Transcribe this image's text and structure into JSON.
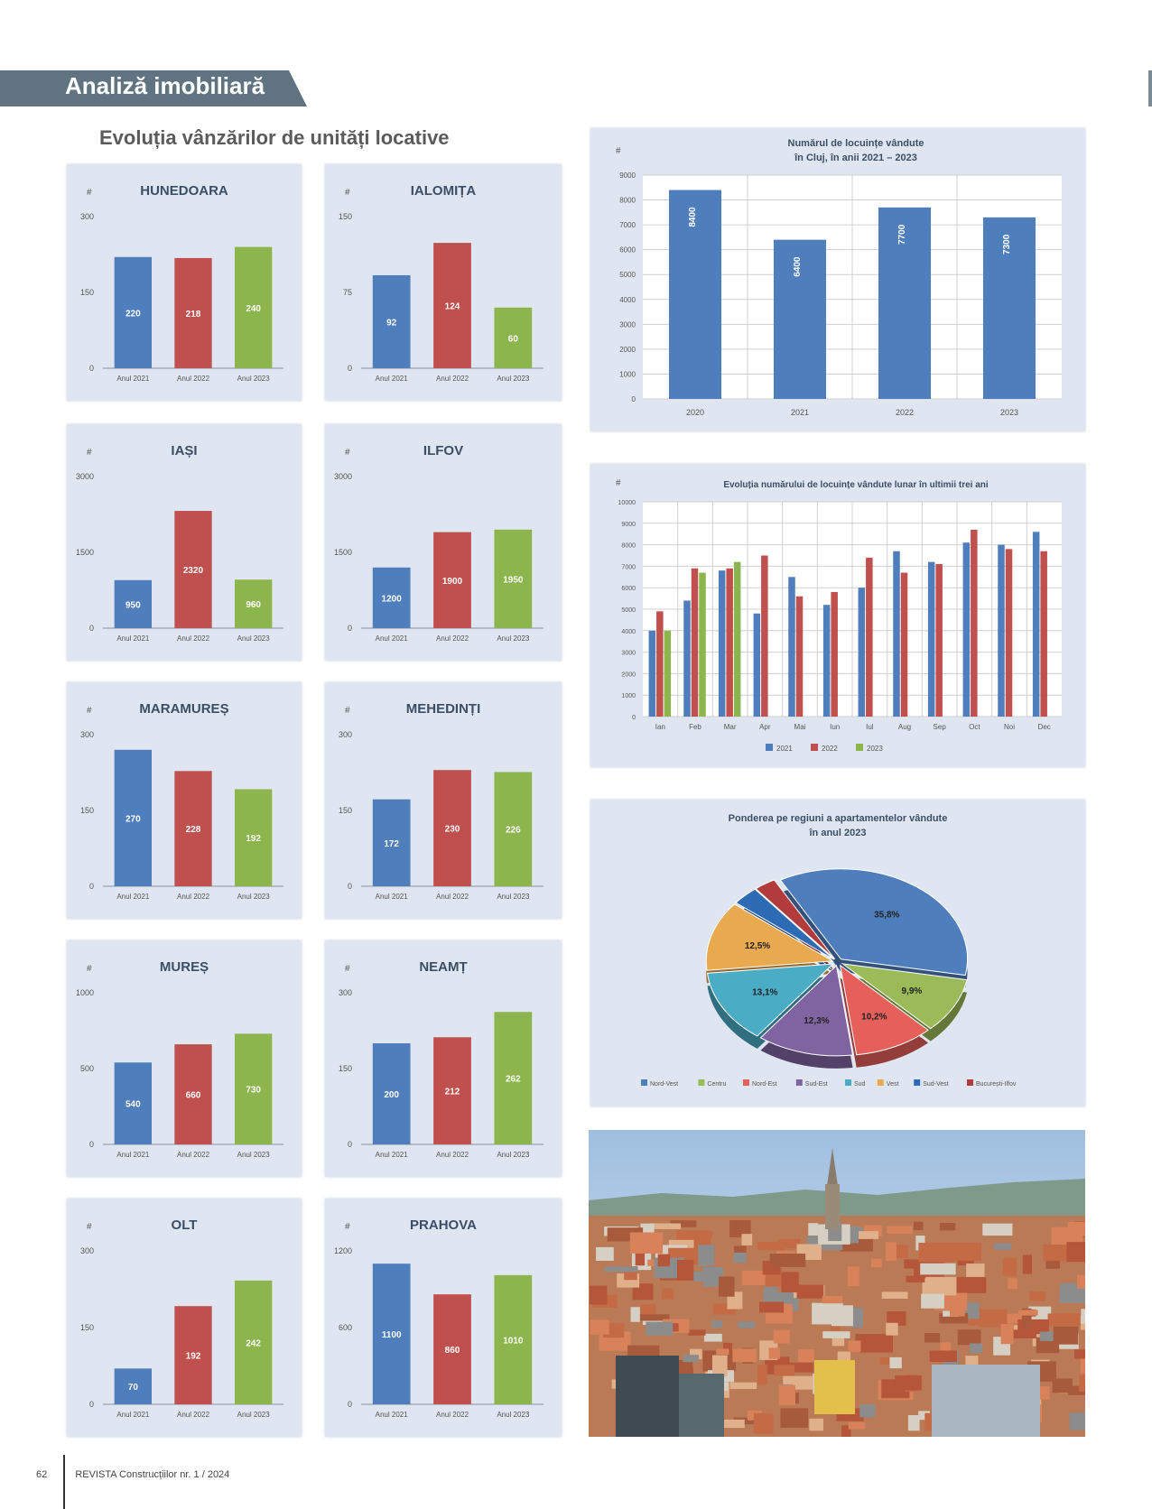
{
  "header": {
    "title": "Analiză imobiliară"
  },
  "section_title": "Evoluția vânzărilor de unități locative",
  "footer": {
    "page": "62",
    "publication": "REVISTA Construcțiilor nr. 1 / 2024"
  },
  "colors": {
    "blue": "#4f7ebd",
    "red": "#c0504d",
    "green": "#8cb54e",
    "panel": "#dfe6f1"
  },
  "chart_data": [
    {
      "id": "hunedoara",
      "type": "bar",
      "title": "HUNEDOARA",
      "ylabel": "#",
      "ylim": [
        0,
        300
      ],
      "yticks": [
        "0",
        "150",
        "300"
      ],
      "categories": [
        "Anul 2021",
        "Anul 2022",
        "Anul 2023"
      ],
      "values": [
        220,
        218,
        240
      ],
      "labels": [
        "220",
        "218",
        "240"
      ]
    },
    {
      "id": "ialomita",
      "type": "bar",
      "title": "IALOMIȚA",
      "ylabel": "#",
      "ylim": [
        0,
        150
      ],
      "yticks": [
        "0",
        "75",
        "150"
      ],
      "categories": [
        "Anul 2021",
        "Anul 2022",
        "Anul 2023"
      ],
      "values": [
        92,
        124,
        60
      ],
      "labels": [
        "92",
        "124",
        "60"
      ]
    },
    {
      "id": "iasi",
      "type": "bar",
      "title": "IAȘI",
      "ylabel": "#",
      "ylim": [
        0,
        3000
      ],
      "yticks": [
        "0",
        "1500",
        "3000"
      ],
      "categories": [
        "Anul 2021",
        "Anul 2022",
        "Anul 2023"
      ],
      "values": [
        950,
        2320,
        960
      ],
      "labels": [
        "950",
        "2320",
        "960"
      ]
    },
    {
      "id": "ilfov",
      "type": "bar",
      "title": "ILFOV",
      "ylabel": "#",
      "ylim": [
        0,
        3000
      ],
      "yticks": [
        "0",
        "1500",
        "3000"
      ],
      "categories": [
        "Anul 2021",
        "Anul 2022",
        "Anul 2023"
      ],
      "values": [
        1200,
        1900,
        1950
      ],
      "labels": [
        "1200",
        "1900",
        "1950"
      ]
    },
    {
      "id": "maramures",
      "type": "bar",
      "title": "MARAMUREȘ",
      "ylabel": "#",
      "ylim": [
        0,
        300
      ],
      "yticks": [
        "0",
        "150",
        "300"
      ],
      "categories": [
        "Anul 2021",
        "Anul 2022",
        "Anul 2023"
      ],
      "values": [
        270,
        228,
        192
      ],
      "labels": [
        "270",
        "228",
        "192"
      ]
    },
    {
      "id": "mehedinti",
      "type": "bar",
      "title": "MEHEDINȚI",
      "ylabel": "#",
      "ylim": [
        0,
        300
      ],
      "yticks": [
        "0",
        "150",
        "300"
      ],
      "categories": [
        "Anul 2021",
        "Anul 2022",
        "Anul 2023"
      ],
      "values": [
        172,
        230,
        226
      ],
      "labels": [
        "172",
        "230",
        "226"
      ]
    },
    {
      "id": "mures",
      "type": "bar",
      "title": "MUREȘ",
      "ylabel": "#",
      "ylim": [
        0,
        1000
      ],
      "yticks": [
        "0",
        "500",
        "1000"
      ],
      "categories": [
        "Anul 2021",
        "Anul 2022",
        "Anul 2023"
      ],
      "values": [
        540,
        660,
        730
      ],
      "labels": [
        "540",
        "660",
        "730"
      ]
    },
    {
      "id": "neamt",
      "type": "bar",
      "title": "NEAMȚ",
      "ylabel": "#",
      "ylim": [
        0,
        300
      ],
      "yticks": [
        "0",
        "150",
        "300"
      ],
      "categories": [
        "Anul 2021",
        "Anul 2022",
        "Anul 2023"
      ],
      "values": [
        200,
        212,
        262
      ],
      "labels": [
        "200",
        "212",
        "262"
      ]
    },
    {
      "id": "olt",
      "type": "bar",
      "title": "OLT",
      "ylabel": "#",
      "ylim": [
        0,
        300
      ],
      "yticks": [
        "0",
        "150",
        "300"
      ],
      "categories": [
        "Anul 2021",
        "Anul 2022",
        "Anul 2023"
      ],
      "values": [
        70,
        192,
        242
      ],
      "labels": [
        "70",
        "192",
        "242"
      ]
    },
    {
      "id": "prahova",
      "type": "bar",
      "title": "PRAHOVA",
      "ylabel": "#",
      "ylim": [
        0,
        1200
      ],
      "yticks": [
        "0",
        "600",
        "1200"
      ],
      "categories": [
        "Anul 2021",
        "Anul 2022",
        "Anul 2023"
      ],
      "values": [
        1100,
        860,
        1010
      ],
      "labels": [
        "1100",
        "860",
        "1010"
      ]
    },
    {
      "id": "total-years",
      "type": "bar",
      "title": "Numărul de locuințe vândute",
      "subtitle": "în Cluj, în anii 2021 – 2023",
      "ylabel": "#",
      "ylim": [
        0,
        9000
      ],
      "yticks": [
        "0",
        "1000",
        "2000",
        "3000",
        "4000",
        "5000",
        "6000",
        "7000",
        "8000",
        "9000"
      ],
      "categories": [
        "2020",
        "2021",
        "2022",
        "2023"
      ],
      "values": [
        8400,
        6400,
        7700,
        7300
      ],
      "labels": [
        "8400",
        "6400",
        "7700",
        "7300"
      ]
    },
    {
      "id": "monthly",
      "type": "bar",
      "title": "Evoluția numărului de locuințe vândute lunar în ultimii trei ani",
      "ylabel": "#",
      "ylim": [
        0,
        10000
      ],
      "yticks": [
        "0",
        "1000",
        "2000",
        "3000",
        "4000",
        "5000",
        "6000",
        "7000",
        "8000",
        "9000",
        "10000"
      ],
      "categories": [
        "Ian",
        "Feb",
        "Mar",
        "Apr",
        "Mai",
        "Iun",
        "Iul",
        "Aug",
        "Sep",
        "Oct",
        "Noi",
        "Dec"
      ],
      "series": [
        {
          "name": "2021",
          "values": [
            4000,
            5400,
            6800,
            4800,
            6500,
            5200,
            6000,
            7700,
            7200,
            8100,
            8000,
            8600
          ]
        },
        {
          "name": "2022",
          "values": [
            4900,
            6900,
            6900,
            7500,
            5600,
            5800,
            7400,
            6700,
            7100,
            8700,
            7800,
            7700
          ]
        },
        {
          "name": "2023",
          "values": [
            4000,
            6700,
            7200,
            null,
            null,
            null,
            null,
            null,
            null,
            null,
            null,
            null
          ]
        }
      ]
    },
    {
      "id": "regions-pie",
      "type": "pie",
      "title": "Ponderea pe regiuni a apartamentelor vândute",
      "subtitle": "în anul 2023",
      "slices": [
        {
          "name": "Nord-Vest",
          "value": 35.8,
          "label": "35,8%",
          "color": "#4f7ebd"
        },
        {
          "name": "Centru",
          "value": 9.9,
          "label": "9,9%",
          "color": "#9bbb59"
        },
        {
          "name": "Nord-Est",
          "value": 10.2,
          "label": "10,2%",
          "color": "#e5605b"
        },
        {
          "name": "Sud-Est",
          "value": 12.3,
          "label": "12,3%",
          "color": "#8064a2"
        },
        {
          "name": "Sud",
          "value": 13.1,
          "label": "13,1%",
          "color": "#4bacc6"
        },
        {
          "name": "Vest",
          "value": 12.5,
          "label": "12,5%",
          "color": "#e9a94f"
        },
        {
          "name": "Sud-Vest",
          "value": 3.4,
          "label": "",
          "color": "#2e6bb5"
        },
        {
          "name": "București-Ilfov",
          "value": 2.8,
          "label": "",
          "color": "#b23b3b"
        }
      ]
    }
  ]
}
